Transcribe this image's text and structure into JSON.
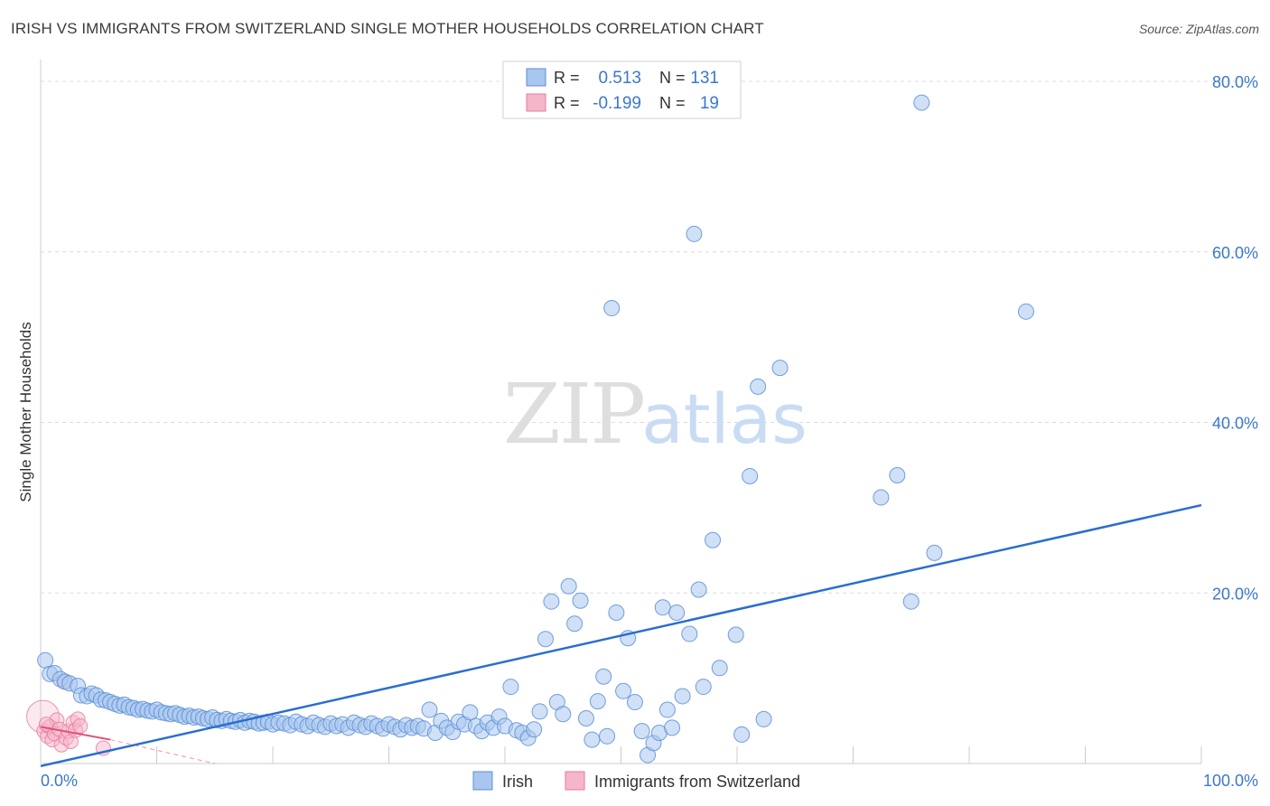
{
  "header": {
    "title": "IRISH VS IMMIGRANTS FROM SWITZERLAND SINGLE MOTHER HOUSEHOLDS CORRELATION CHART",
    "source": "Source: ZipAtlas.com"
  },
  "watermark": {
    "zip": "ZIP",
    "atlas": "atlas"
  },
  "colors": {
    "irish_fill": "#a9c6ef",
    "irish_stroke": "#5b8fd6",
    "irish_line": "#2a6dd0",
    "swiss_fill": "#f6b6c9",
    "swiss_stroke": "#e67a9c",
    "swiss_line": "#e0507a",
    "grid": "#dcdcdc",
    "tick_text": "#3a78cc"
  },
  "stats": [
    {
      "r_label": "R =",
      "r_value": "0.513",
      "n_label": "N =",
      "n_value": "131"
    },
    {
      "r_label": "R =",
      "r_value": "-0.199",
      "n_label": "N =",
      "n_value": "19"
    }
  ],
  "chart_data": {
    "type": "scatter",
    "title": "IRISH VS IMMIGRANTS FROM SWITZERLAND SINGLE MOTHER HOUSEHOLDS CORRELATION CHART",
    "xlabel": "",
    "ylabel": "Single Mother Households",
    "xlim": [
      0,
      100
    ],
    "ylim": [
      0,
      80
    ],
    "x_tick_labels": [
      "0.0%",
      "100.0%"
    ],
    "y_ticks": [
      20,
      40,
      60,
      80
    ],
    "y_tick_labels": [
      "20.0%",
      "40.0%",
      "60.0%",
      "80.0%"
    ],
    "grid": true,
    "legend_position": "bottom",
    "series": [
      {
        "name": "Irish",
        "trend": {
          "x": [
            0,
            100
          ],
          "y": [
            -0.3,
            30.3
          ]
        },
        "points": [
          [
            0.4,
            12.1
          ],
          [
            0.8,
            10.5
          ],
          [
            1.2,
            10.6
          ],
          [
            1.7,
            9.9
          ],
          [
            2.1,
            9.6
          ],
          [
            2.5,
            9.4
          ],
          [
            3.2,
            9.1
          ],
          [
            3.5,
            8.0
          ],
          [
            4.0,
            7.9
          ],
          [
            4.4,
            8.2
          ],
          [
            4.8,
            8.0
          ],
          [
            5.2,
            7.5
          ],
          [
            5.6,
            7.4
          ],
          [
            6.0,
            7.2
          ],
          [
            6.4,
            7.0
          ],
          [
            6.8,
            6.8
          ],
          [
            7.2,
            6.9
          ],
          [
            7.6,
            6.6
          ],
          [
            8.0,
            6.5
          ],
          [
            8.4,
            6.3
          ],
          [
            8.8,
            6.4
          ],
          [
            9.2,
            6.2
          ],
          [
            9.6,
            6.1
          ],
          [
            10.0,
            6.3
          ],
          [
            10.4,
            6.0
          ],
          [
            10.8,
            5.9
          ],
          [
            11.2,
            5.8
          ],
          [
            11.6,
            5.9
          ],
          [
            12.0,
            5.7
          ],
          [
            12.4,
            5.5
          ],
          [
            12.8,
            5.6
          ],
          [
            13.2,
            5.4
          ],
          [
            13.6,
            5.5
          ],
          [
            14.0,
            5.3
          ],
          [
            14.4,
            5.2
          ],
          [
            14.8,
            5.4
          ],
          [
            15.2,
            5.1
          ],
          [
            15.6,
            5.0
          ],
          [
            16.0,
            5.2
          ],
          [
            16.4,
            5.0
          ],
          [
            16.8,
            4.9
          ],
          [
            17.2,
            5.1
          ],
          [
            17.6,
            4.8
          ],
          [
            18.0,
            5.0
          ],
          [
            18.4,
            4.9
          ],
          [
            18.8,
            4.7
          ],
          [
            19.2,
            4.8
          ],
          [
            19.6,
            4.9
          ],
          [
            20.0,
            4.6
          ],
          [
            20.5,
            4.8
          ],
          [
            21.0,
            4.7
          ],
          [
            21.5,
            4.5
          ],
          [
            22.0,
            4.9
          ],
          [
            22.5,
            4.6
          ],
          [
            23.0,
            4.4
          ],
          [
            23.5,
            4.8
          ],
          [
            24.0,
            4.5
          ],
          [
            24.5,
            4.3
          ],
          [
            25.0,
            4.7
          ],
          [
            25.5,
            4.4
          ],
          [
            26.0,
            4.6
          ],
          [
            26.5,
            4.2
          ],
          [
            27.0,
            4.8
          ],
          [
            27.5,
            4.5
          ],
          [
            28.0,
            4.3
          ],
          [
            28.5,
            4.7
          ],
          [
            29.0,
            4.4
          ],
          [
            29.5,
            4.1
          ],
          [
            30.0,
            4.6
          ],
          [
            30.5,
            4.3
          ],
          [
            31.0,
            4.0
          ],
          [
            31.5,
            4.5
          ],
          [
            32.0,
            4.2
          ],
          [
            32.5,
            4.4
          ],
          [
            33.0,
            4.1
          ],
          [
            33.5,
            6.3
          ],
          [
            34.0,
            3.6
          ],
          [
            34.5,
            5.0
          ],
          [
            35.0,
            4.2
          ],
          [
            35.5,
            3.7
          ],
          [
            36.0,
            4.9
          ],
          [
            36.5,
            4.6
          ],
          [
            37.0,
            6.0
          ],
          [
            37.5,
            4.4
          ],
          [
            38.0,
            3.8
          ],
          [
            38.5,
            4.8
          ],
          [
            39.0,
            4.2
          ],
          [
            39.5,
            5.5
          ],
          [
            40.0,
            4.4
          ],
          [
            40.5,
            9.0
          ],
          [
            41.0,
            3.9
          ],
          [
            41.5,
            3.6
          ],
          [
            42.0,
            3.0
          ],
          [
            42.5,
            4.0
          ],
          [
            43.0,
            6.1
          ],
          [
            43.5,
            14.6
          ],
          [
            44.0,
            19.0
          ],
          [
            44.5,
            7.2
          ],
          [
            45.0,
            5.8
          ],
          [
            45.5,
            20.8
          ],
          [
            46.0,
            16.4
          ],
          [
            46.5,
            19.1
          ],
          [
            47.0,
            5.3
          ],
          [
            47.5,
            2.8
          ],
          [
            48.0,
            7.3
          ],
          [
            48.5,
            10.2
          ],
          [
            48.8,
            3.2
          ],
          [
            49.2,
            53.4
          ],
          [
            49.6,
            17.7
          ],
          [
            50.2,
            8.5
          ],
          [
            50.6,
            14.7
          ],
          [
            51.2,
            7.2
          ],
          [
            51.8,
            3.8
          ],
          [
            52.3,
            1.0
          ],
          [
            52.8,
            2.4
          ],
          [
            53.3,
            3.6
          ],
          [
            53.6,
            18.3
          ],
          [
            54.0,
            6.3
          ],
          [
            54.4,
            4.2
          ],
          [
            54.8,
            17.7
          ],
          [
            55.3,
            7.9
          ],
          [
            55.9,
            15.2
          ],
          [
            56.3,
            62.1
          ],
          [
            56.7,
            20.4
          ],
          [
            57.1,
            9.0
          ],
          [
            57.9,
            26.2
          ],
          [
            58.5,
            11.2
          ],
          [
            59.9,
            15.1
          ],
          [
            60.4,
            3.4
          ],
          [
            61.1,
            33.7
          ],
          [
            61.8,
            44.2
          ],
          [
            62.3,
            5.2
          ],
          [
            63.7,
            46.4
          ],
          [
            72.4,
            31.2
          ],
          [
            73.8,
            33.8
          ],
          [
            75.0,
            19.0
          ],
          [
            75.9,
            77.5
          ],
          [
            77.0,
            24.7
          ],
          [
            84.9,
            53.0
          ]
        ]
      },
      {
        "name": "Immigrants from Switzerland",
        "trend": {
          "x": [
            0,
            6
          ],
          "y": [
            4.3,
            2.8
          ]
        },
        "trend_dashed": {
          "x": [
            6,
            15
          ],
          "y": [
            2.8,
            0
          ]
        },
        "points": [
          [
            0.2,
            5.5
          ],
          [
            0.3,
            3.8
          ],
          [
            0.6,
            3.2
          ],
          [
            0.8,
            4.3
          ],
          [
            1.0,
            2.8
          ],
          [
            1.2,
            3.5
          ],
          [
            1.4,
            5.1
          ],
          [
            1.6,
            4.0
          ],
          [
            1.8,
            2.2
          ],
          [
            2.0,
            9.6
          ],
          [
            2.2,
            3.0
          ],
          [
            2.4,
            3.8
          ],
          [
            2.6,
            2.6
          ],
          [
            2.8,
            4.8
          ],
          [
            3.0,
            3.9
          ],
          [
            3.2,
            5.2
          ],
          [
            3.4,
            4.4
          ],
          [
            5.4,
            1.8
          ],
          [
            0.5,
            4.6
          ]
        ]
      }
    ]
  }
}
